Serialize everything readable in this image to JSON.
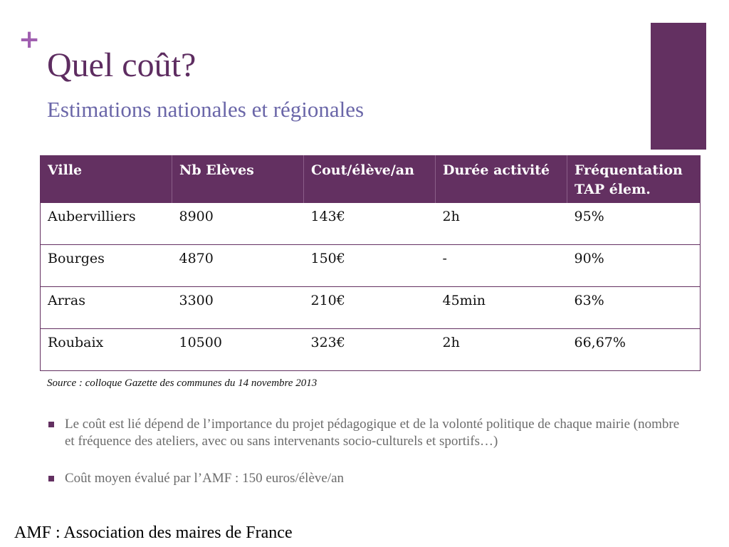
{
  "slide": {
    "plus_symbol": "+",
    "title": "Quel coût?",
    "subtitle": "Estimations nationales et régionales"
  },
  "table": {
    "headers": [
      "Ville",
      "Nb Elèves",
      "Cout/élève/an",
      "Durée activité",
      "Fréquentation TAP élem."
    ],
    "rows": [
      [
        "Aubervilliers",
        "8900",
        "143€",
        "2h",
        "95%"
      ],
      [
        "Bourges",
        "4870",
        "150€",
        "-",
        "90%"
      ],
      [
        "Arras",
        "3300",
        "210€",
        "45min",
        "63%"
      ],
      [
        "Roubaix",
        "10500",
        "323€",
        "2h",
        "66,67%"
      ]
    ]
  },
  "source": "Source : colloque Gazette des communes du 14 novembre 2013",
  "bullets": [
    "Le coût est lié dépend de l’importance du  projet pédagogique et de la volonté politique de chaque mairie (nombre et fréquence des ateliers, avec ou sans intervenants socio-culturels et sportifs…)",
    "Coût moyen évalué par l’AMF : 150 euros/élève/an"
  ],
  "footer_note": "AMF : Association des maires de France",
  "colors": {
    "accent": "#633061",
    "title": "#5e2d61",
    "subtitle": "#6a66a8",
    "plus": "#a05fb0",
    "bullet_text": "#6b6b6b"
  }
}
